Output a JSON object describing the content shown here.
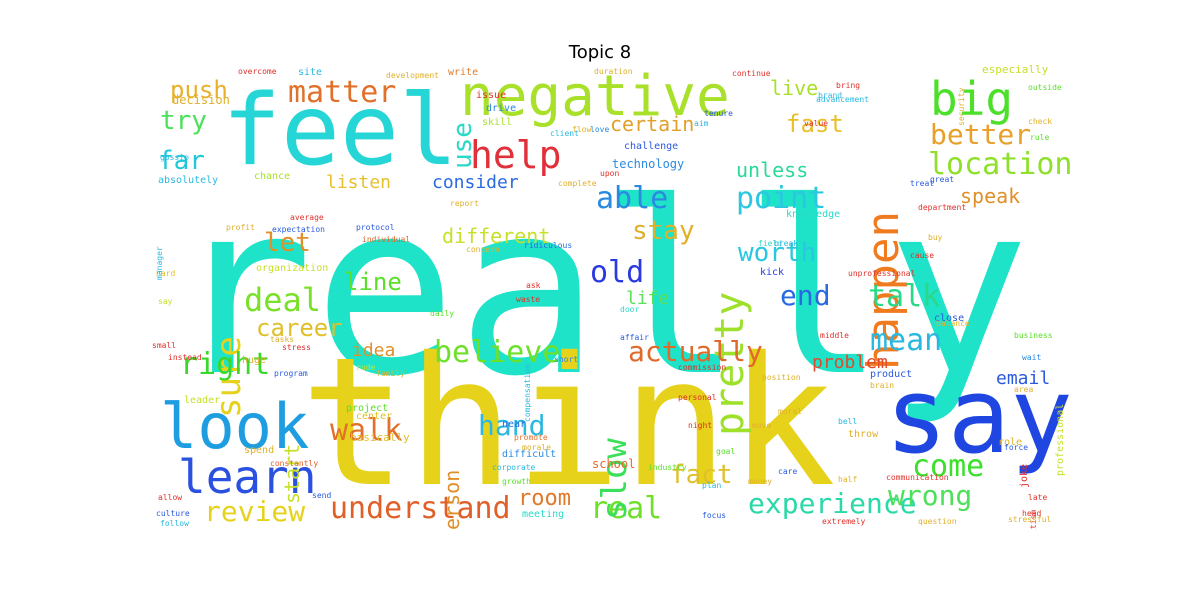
{
  "title": "Topic 8",
  "words": [
    {
      "text": "really",
      "color": "#1ee3c8"
    },
    {
      "text": "think",
      "color": "#e6d21a"
    },
    {
      "text": "feel",
      "color": "#26d6d6"
    },
    {
      "text": "say",
      "color": "#1f46e0"
    },
    {
      "text": "negative",
      "color": "#a8e02a"
    },
    {
      "text": "happen",
      "color": "#f07a1e"
    },
    {
      "text": "big",
      "color": "#4de02a"
    },
    {
      "text": "look",
      "color": "#1e9ee0"
    },
    {
      "text": "help",
      "color": "#e0303a"
    },
    {
      "text": "pretty",
      "color": "#9ee02a"
    },
    {
      "text": "learn",
      "color": "#2a50e0"
    },
    {
      "text": "matter",
      "color": "#e0702a"
    },
    {
      "text": "sure",
      "color": "#e6d21a"
    },
    {
      "text": "location",
      "color": "#8ee02a"
    },
    {
      "text": "better",
      "color": "#e8a02a"
    },
    {
      "text": "push",
      "color": "#e8b02a"
    },
    {
      "text": "try",
      "color": "#4de05a"
    },
    {
      "text": "far",
      "color": "#1ec8d8"
    },
    {
      "text": "let",
      "color": "#e0902a"
    },
    {
      "text": "deal",
      "color": "#7ae02a"
    },
    {
      "text": "right",
      "color": "#3ad82a"
    },
    {
      "text": "career",
      "color": "#e0c02a"
    },
    {
      "text": "review",
      "color": "#e6d21a"
    },
    {
      "text": "walk",
      "color": "#e0702a"
    },
    {
      "text": "understand",
      "color": "#e0602a"
    },
    {
      "text": "real",
      "color": "#6ee02a"
    },
    {
      "text": "experience",
      "color": "#2ad8a8"
    },
    {
      "text": "wrong",
      "color": "#4de05a"
    },
    {
      "text": "come",
      "color": "#3ae02a"
    },
    {
      "text": "talk",
      "color": "#2ad88a"
    },
    {
      "text": "mean",
      "color": "#2ab8e0"
    },
    {
      "text": "actually",
      "color": "#e06a2a"
    },
    {
      "text": "believe",
      "color": "#6ee02a"
    },
    {
      "text": "point",
      "color": "#2ac8e0"
    },
    {
      "text": "able",
      "color": "#2a8ae0"
    },
    {
      "text": "old",
      "color": "#2a3ae0"
    },
    {
      "text": "worth",
      "color": "#2ac8e0"
    },
    {
      "text": "end",
      "color": "#2a6ae0"
    },
    {
      "text": "stay",
      "color": "#e0b02a"
    },
    {
      "text": "slow",
      "color": "#3ae05a"
    },
    {
      "text": "hand",
      "color": "#2ab8e0"
    },
    {
      "text": "fact",
      "color": "#e0c02a"
    },
    {
      "text": "room",
      "color": "#e07a2a"
    },
    {
      "text": "use",
      "color": "#2ad8c8"
    },
    {
      "text": "fast",
      "color": "#e8c02a"
    },
    {
      "text": "certain",
      "color": "#e0a02a"
    },
    {
      "text": "live",
      "color": "#a8e02a"
    },
    {
      "text": "unless",
      "color": "#2ad898"
    },
    {
      "text": "speak",
      "color": "#e0902a"
    },
    {
      "text": "consider",
      "color": "#2a6ae0"
    },
    {
      "text": "listen",
      "color": "#e8c02a"
    },
    {
      "text": "different",
      "color": "#c8e02a"
    },
    {
      "text": "line",
      "color": "#5ae02a"
    },
    {
      "text": "life",
      "color": "#5ae05a"
    },
    {
      "text": "idea",
      "color": "#e0902a"
    },
    {
      "text": "problem",
      "color": "#e04a2a"
    },
    {
      "text": "email",
      "color": "#2a5ae0"
    },
    {
      "text": "person",
      "color": "#e0902a"
    },
    {
      "text": "start",
      "color": "#c8e02a"
    },
    {
      "text": "technology",
      "color": "#2a8ae0"
    },
    {
      "text": "challenge",
      "color": "#2a5ae0"
    },
    {
      "text": "knowledge",
      "color": "#2ad8c8"
    },
    {
      "text": "organization",
      "color": "#c8e02a"
    },
    {
      "text": "professional",
      "color": "#c8e02a"
    },
    {
      "text": "especially",
      "color": "#c8e02a"
    },
    {
      "text": "decision",
      "color": "#e0b02a"
    },
    {
      "text": "basically",
      "color": "#e0c02a"
    },
    {
      "text": "chance",
      "color": "#a8e02a"
    },
    {
      "text": "absolutely",
      "color": "#2ab8e0"
    },
    {
      "text": "skill",
      "color": "#a8e02a"
    },
    {
      "text": "drive",
      "color": "#2a8ae0"
    },
    {
      "text": "issue",
      "color": "#e0302a"
    },
    {
      "text": "write",
      "color": "#e07a2a"
    },
    {
      "text": "site",
      "color": "#2ab8e0"
    },
    {
      "text": "difficult",
      "color": "#2a8ae0"
    },
    {
      "text": "school",
      "color": "#e06a2a"
    },
    {
      "text": "near",
      "color": "#2a6ae0"
    },
    {
      "text": "promote",
      "color": "#e0702a"
    },
    {
      "text": "morale",
      "color": "#e0b02a"
    },
    {
      "text": "corporate",
      "color": "#2ab8e0"
    },
    {
      "text": "growth",
      "color": "#5ae02a"
    },
    {
      "text": "meeting",
      "color": "#2ad8c8"
    },
    {
      "text": "center",
      "color": "#e0c02a"
    },
    {
      "text": "project",
      "color": "#5ae02a"
    },
    {
      "text": "family",
      "color": "#e0b02a"
    },
    {
      "text": "rude",
      "color": "#c8e02a"
    },
    {
      "text": "leader",
      "color": "#c8e02a"
    },
    {
      "text": "huge",
      "color": "#e0b02a"
    },
    {
      "text": "spend",
      "color": "#e0b02a"
    },
    {
      "text": "constantly",
      "color": "#e0602a"
    },
    {
      "text": "program",
      "color": "#2a5ae0"
    },
    {
      "text": "stress",
      "color": "#e0302a"
    },
    {
      "text": "instead",
      "color": "#e0302a"
    },
    {
      "text": "small",
      "color": "#e0302a"
    },
    {
      "text": "say",
      "color": "#c8e02a"
    },
    {
      "text": "hard",
      "color": "#e0c02a"
    },
    {
      "text": "manager",
      "color": "#2ab8e0"
    },
    {
      "text": "profit",
      "color": "#e0b02a"
    },
    {
      "text": "average",
      "color": "#e0302a"
    },
    {
      "text": "expectation",
      "color": "#2a5ae0"
    },
    {
      "text": "protocol",
      "color": "#2a5ae0"
    },
    {
      "text": "individual",
      "color": "#e06a2a"
    },
    {
      "text": "concern",
      "color": "#e0b02a"
    },
    {
      "text": "ridiculous",
      "color": "#2a6ae0"
    },
    {
      "text": "ask",
      "color": "#e0302a"
    },
    {
      "text": "waste",
      "color": "#e0302a"
    },
    {
      "text": "daily",
      "color": "#5ae02a"
    },
    {
      "text": "short",
      "color": "#2a8ae0"
    },
    {
      "text": "commission",
      "color": "#e0302a"
    },
    {
      "text": "affair",
      "color": "#2a5ae0"
    },
    {
      "text": "door",
      "color": "#2ad8c8"
    },
    {
      "text": "kick",
      "color": "#2a3ae0"
    },
    {
      "text": "field",
      "color": "#2ad8c8"
    },
    {
      "text": "break",
      "color": "#2ab8e0"
    },
    {
      "text": "cause",
      "color": "#e0302a"
    },
    {
      "text": "unprofessional",
      "color": "#e0302a"
    },
    {
      "text": "close",
      "color": "#2a5ae0"
    },
    {
      "text": "balance",
      "color": "#e0b02a"
    },
    {
      "text": "business",
      "color": "#5ae02a"
    },
    {
      "text": "wait",
      "color": "#2a8ae0"
    },
    {
      "text": "middle",
      "color": "#e0302a"
    },
    {
      "text": "product",
      "color": "#2a5ae0"
    },
    {
      "text": "brain",
      "color": "#e0b02a"
    },
    {
      "text": "position",
      "color": "#e0b02a"
    },
    {
      "text": "bell",
      "color": "#2ab8e0"
    },
    {
      "text": "goal",
      "color": "#5ae02a"
    },
    {
      "text": "night",
      "color": "#e0302a"
    },
    {
      "text": "move",
      "color": "#e0b02a"
    },
    {
      "text": "moral",
      "color": "#e0b02a"
    },
    {
      "text": "throw",
      "color": "#e0b02a"
    },
    {
      "text": "area",
      "color": "#e0b02a"
    },
    {
      "text": "joke",
      "color": "#e0302a"
    },
    {
      "text": "role",
      "color": "#e0b02a"
    },
    {
      "text": "force",
      "color": "#2a5ae0"
    },
    {
      "text": "late",
      "color": "#e0302a"
    },
    {
      "text": "head",
      "color": "#e0302a"
    },
    {
      "text": "favoritism",
      "color": "#e0302a"
    },
    {
      "text": "stressful",
      "color": "#e0b02a"
    },
    {
      "text": "question",
      "color": "#e0b02a"
    },
    {
      "text": "extremely",
      "color": "#e0302a"
    },
    {
      "text": "focus",
      "color": "#2a5ae0"
    },
    {
      "text": "culture",
      "color": "#2a5ae0"
    },
    {
      "text": "follow",
      "color": "#2ab8e0"
    },
    {
      "text": "allow",
      "color": "#e0302a"
    },
    {
      "text": "send",
      "color": "#2a5ae0"
    },
    {
      "text": "industry",
      "color": "#5ae02a"
    },
    {
      "text": "plan",
      "color": "#2ab8e0"
    },
    {
      "text": "half",
      "color": "#e0b02a"
    },
    {
      "text": "communication",
      "color": "#e0302a"
    },
    {
      "text": "money",
      "color": "#e0b02a"
    },
    {
      "text": "care",
      "color": "#2a5ae0"
    },
    {
      "text": "department",
      "color": "#e0302a"
    },
    {
      "text": "great",
      "color": "#2a5ae0"
    },
    {
      "text": "rule",
      "color": "#5ae02a"
    },
    {
      "text": "check",
      "color": "#e0b02a"
    },
    {
      "text": "outside",
      "color": "#5ae02a"
    },
    {
      "text": "security",
      "color": "#e0b02a"
    },
    {
      "text": "bring",
      "color": "#e0302a"
    },
    {
      "text": "value",
      "color": "#e0302a"
    },
    {
      "text": "advancement",
      "color": "#2ab8e0"
    },
    {
      "text": "treat",
      "color": "#2a5ae0"
    },
    {
      "text": "love",
      "color": "#2a8ae0"
    },
    {
      "text": "client",
      "color": "#2ab8e0"
    },
    {
      "text": "flow",
      "color": "#e0b02a"
    },
    {
      "text": "tenure",
      "color": "#2a5ae0"
    },
    {
      "text": "complete",
      "color": "#e0b02a"
    },
    {
      "text": "upon",
      "color": "#e0302a"
    },
    {
      "text": "aim",
      "color": "#2ab8e0"
    },
    {
      "text": "report",
      "color": "#e0b02a"
    },
    {
      "text": "gossip",
      "color": "#2ab8e0"
    },
    {
      "text": "development",
      "color": "#e0b02a"
    },
    {
      "text": "overcome",
      "color": "#e0302a"
    },
    {
      "text": "continue",
      "color": "#e0302a"
    },
    {
      "text": "duration",
      "color": "#e0b02a"
    },
    {
      "text": "buy",
      "color": "#e0b02a"
    },
    {
      "text": "complexity",
      "color": "#e0302a"
    },
    {
      "text": "tasks",
      "color": "#e0b02a"
    },
    {
      "text": "compensation",
      "color": "#2ab8e0"
    },
    {
      "text": "personal",
      "color": "#e0302a"
    },
    {
      "text": "brand",
      "color": "#2ab8e0"
    }
  ]
}
